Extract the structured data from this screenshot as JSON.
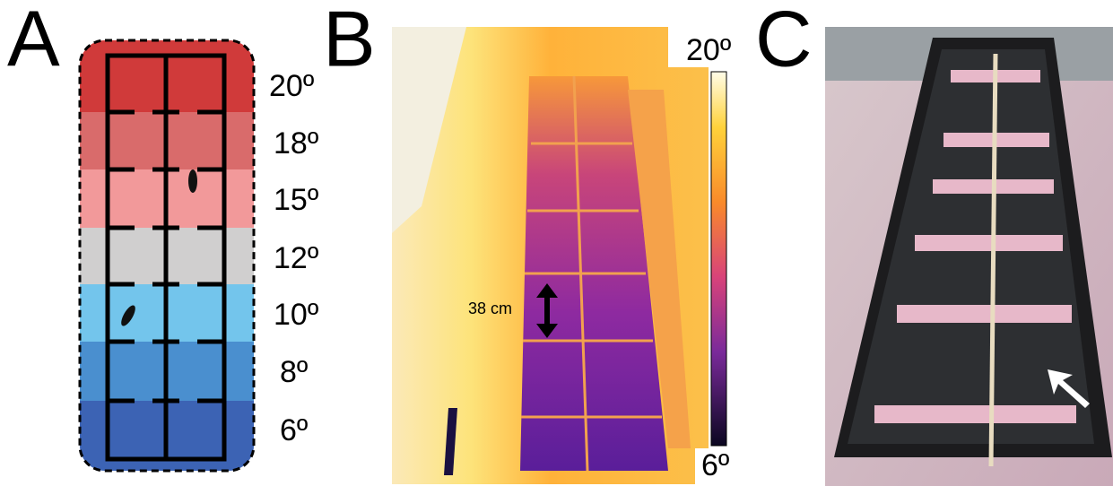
{
  "panels": [
    {
      "label": "A",
      "temperatures": [
        "20º",
        "18º",
        "15º",
        "12º",
        "10º",
        "8º",
        "6º"
      ]
    },
    {
      "label": "B",
      "scale_label": "38 cm",
      "colorbar": {
        "max": "20º",
        "min": "6º"
      }
    },
    {
      "label": "C"
    }
  ]
}
